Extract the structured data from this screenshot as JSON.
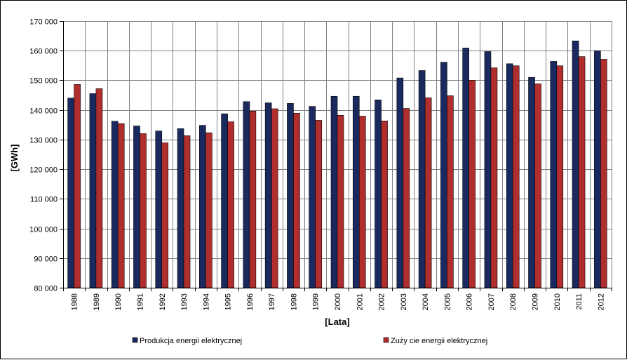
{
  "chart_data": {
    "type": "bar",
    "title": "",
    "xlabel": "[Lata]",
    "ylabel": "[GWh]",
    "ylim": [
      80000,
      170000
    ],
    "ytick_step": 10000,
    "grid": true,
    "legend_position": "bottom",
    "categories": [
      "1988",
      "1989",
      "1990",
      "1991",
      "1992",
      "1993",
      "1994",
      "1995",
      "1996",
      "1997",
      "1998",
      "1999",
      "2000",
      "2001",
      "2002",
      "2003",
      "2004",
      "2005",
      "2006",
      "2007",
      "2008",
      "2009",
      "2010",
      "2011",
      "2012"
    ],
    "series": [
      {
        "name": "Produkcja energii elektrycznej",
        "color": "#1a2a5e",
        "values": [
          144000,
          145500,
          136200,
          134600,
          132900,
          133700,
          134800,
          138700,
          142800,
          142400,
          142200,
          141200,
          144600,
          144600,
          143400,
          150800,
          153300,
          156100,
          160900,
          159700,
          155600,
          151000,
          156400,
          163300,
          160000
        ]
      },
      {
        "name": "Zuży cie energii elektrycznej",
        "color": "#b02e2e",
        "values": [
          148600,
          147200,
          135400,
          132000,
          128900,
          131300,
          132300,
          136000,
          139600,
          140400,
          138900,
          136500,
          138200,
          137900,
          136300,
          140500,
          144100,
          144800,
          150000,
          154200,
          154900,
          148800,
          154900,
          158000,
          157100
        ]
      }
    ]
  }
}
